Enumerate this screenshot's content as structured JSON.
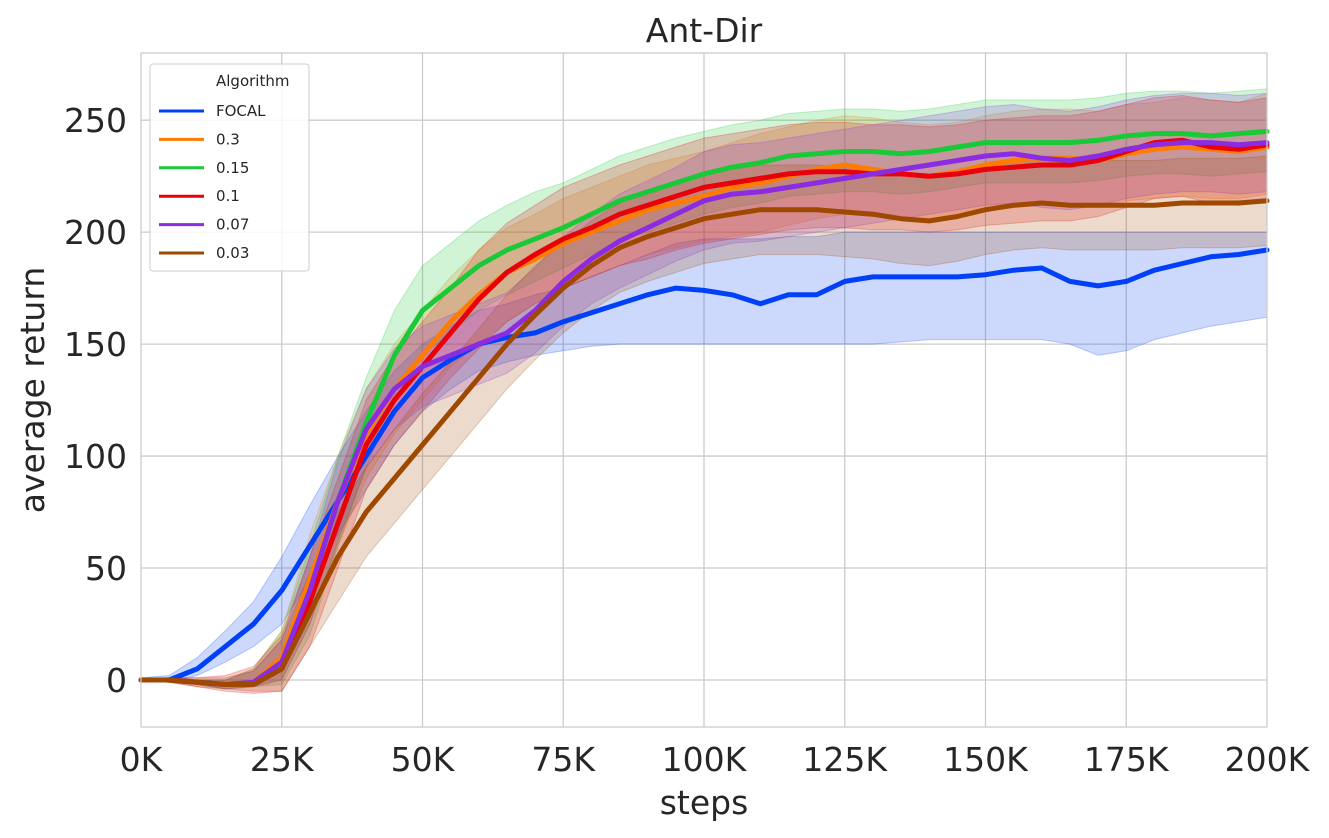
{
  "chart_data": {
    "type": "line",
    "title": "Ant-Dir",
    "xlabel": "steps",
    "ylabel": "average return",
    "xlim": [
      0,
      200000
    ],
    "ylim": [
      -21,
      280
    ],
    "x_ticks": [
      0,
      25000,
      50000,
      75000,
      100000,
      125000,
      150000,
      175000,
      200000
    ],
    "x_tick_labels": [
      "0K",
      "25K",
      "50K",
      "75K",
      "100K",
      "125K",
      "150K",
      "175K",
      "200K"
    ],
    "y_ticks": [
      0,
      50,
      100,
      150,
      200,
      250
    ],
    "y_tick_labels": [
      "0",
      "50",
      "100",
      "150",
      "200",
      "250"
    ],
    "grid": true,
    "legend": {
      "title": "Algorithm",
      "placement": "top-left"
    },
    "x": [
      0,
      5000,
      10000,
      15000,
      20000,
      25000,
      30000,
      35000,
      40000,
      45000,
      50000,
      55000,
      60000,
      65000,
      70000,
      75000,
      80000,
      85000,
      90000,
      95000,
      100000,
      105000,
      110000,
      115000,
      120000,
      125000,
      130000,
      135000,
      140000,
      145000,
      150000,
      155000,
      160000,
      165000,
      170000,
      175000,
      180000,
      185000,
      190000,
      195000,
      200000
    ],
    "series": [
      {
        "name": "FOCAL",
        "color": "#0041f7",
        "values": [
          0,
          0,
          5,
          15,
          25,
          40,
          60,
          80,
          100,
          120,
          135,
          143,
          150,
          153,
          155,
          160,
          164,
          168,
          172,
          175,
          174,
          172,
          168,
          172,
          172,
          178,
          180,
          180,
          180,
          180,
          181,
          183,
          184,
          178,
          176,
          178,
          183,
          186,
          189,
          190,
          192
        ],
        "lower": [
          0,
          -1,
          2,
          8,
          15,
          25,
          45,
          65,
          85,
          105,
          120,
          130,
          138,
          142,
          145,
          147,
          149,
          150,
          150,
          150,
          150,
          150,
          150,
          150,
          150,
          150,
          150,
          151,
          152,
          152,
          152,
          152,
          152,
          150,
          145,
          147,
          152,
          155,
          158,
          160,
          162
        ],
        "upper": [
          1,
          2,
          10,
          22,
          35,
          55,
          78,
          100,
          120,
          138,
          150,
          158,
          165,
          168,
          172,
          175,
          180,
          185,
          190,
          195,
          197,
          197,
          197,
          198,
          198,
          200,
          200,
          200,
          200,
          200,
          200,
          200,
          200,
          200,
          200,
          200,
          200,
          200,
          200,
          200,
          200
        ]
      },
      {
        "name": "0.3",
        "color": "#ff7c00",
        "values": [
          0,
          0,
          -1,
          -2,
          -1,
          10,
          45,
          80,
          110,
          130,
          145,
          160,
          172,
          182,
          188,
          195,
          200,
          205,
          210,
          213,
          216,
          220,
          222,
          225,
          228,
          230,
          228,
          226,
          225,
          227,
          230,
          232,
          233,
          233,
          232,
          235,
          237,
          238,
          237,
          236,
          238
        ],
        "lower": [
          0,
          -1,
          -2,
          -4,
          -3,
          0,
          25,
          60,
          90,
          110,
          125,
          140,
          150,
          160,
          168,
          175,
          180,
          185,
          190,
          193,
          196,
          198,
          200,
          203,
          206,
          208,
          207,
          206,
          205,
          207,
          210,
          211,
          212,
          212,
          212,
          214,
          215,
          216,
          215,
          215,
          217
        ],
        "upper": [
          0,
          1,
          0,
          0,
          5,
          22,
          65,
          100,
          130,
          150,
          165,
          180,
          192,
          202,
          208,
          215,
          220,
          225,
          230,
          233,
          236,
          240,
          244,
          247,
          250,
          252,
          251,
          249,
          248,
          249,
          252,
          254,
          255,
          255,
          254,
          257,
          258,
          260,
          259,
          258,
          262
        ]
      },
      {
        "name": "0.15",
        "color": "#1ac938",
        "values": [
          0,
          0,
          -1,
          -2,
          -1,
          8,
          40,
          80,
          115,
          145,
          165,
          175,
          185,
          192,
          197,
          202,
          208,
          214,
          218,
          222,
          226,
          229,
          231,
          234,
          235,
          236,
          236,
          235,
          236,
          238,
          240,
          240,
          240,
          240,
          241,
          243,
          244,
          244,
          243,
          244,
          245
        ],
        "lower": [
          0,
          -1,
          -2,
          -4,
          -3,
          -2,
          20,
          60,
          95,
          125,
          145,
          155,
          165,
          172,
          178,
          184,
          190,
          196,
          200,
          204,
          208,
          211,
          213,
          216,
          217,
          218,
          218,
          217,
          218,
          220,
          222,
          222,
          222,
          222,
          223,
          225,
          226,
          226,
          225,
          226,
          227
        ],
        "upper": [
          0,
          1,
          0,
          0,
          5,
          22,
          60,
          100,
          135,
          165,
          185,
          195,
          205,
          212,
          218,
          222,
          228,
          234,
          238,
          242,
          245,
          248,
          250,
          253,
          254,
          255,
          255,
          254,
          255,
          257,
          259,
          259,
          259,
          259,
          260,
          262,
          263,
          263,
          262,
          263,
          264
        ]
      },
      {
        "name": "0.1",
        "color": "#e8000b",
        "values": [
          0,
          0,
          -1,
          -2,
          -2,
          5,
          35,
          70,
          105,
          125,
          140,
          155,
          170,
          182,
          190,
          197,
          202,
          208,
          212,
          216,
          220,
          222,
          224,
          226,
          227,
          227,
          226,
          226,
          225,
          226,
          228,
          229,
          230,
          230,
          232,
          236,
          240,
          241,
          238,
          237,
          239
        ],
        "lower": [
          0,
          -1,
          -3,
          -5,
          -6,
          -5,
          15,
          50,
          85,
          105,
          120,
          135,
          148,
          160,
          168,
          175,
          180,
          185,
          188,
          192,
          195,
          197,
          199,
          201,
          202,
          202,
          201,
          201,
          200,
          201,
          203,
          204,
          205,
          205,
          207,
          211,
          215,
          216,
          213,
          212,
          214
        ],
        "upper": [
          0,
          1,
          1,
          2,
          6,
          20,
          55,
          90,
          125,
          145,
          160,
          175,
          192,
          204,
          212,
          220,
          225,
          230,
          234,
          238,
          242,
          244,
          246,
          248,
          249,
          249,
          248,
          248,
          247,
          248,
          250,
          251,
          252,
          252,
          254,
          257,
          260,
          261,
          259,
          258,
          260
        ]
      },
      {
        "name": "0.07",
        "color": "#8b2be2",
        "values": [
          0,
          0,
          -1,
          -2,
          -1,
          8,
          40,
          80,
          112,
          130,
          140,
          145,
          150,
          155,
          165,
          178,
          188,
          196,
          202,
          208,
          214,
          217,
          218,
          220,
          222,
          224,
          226,
          228,
          230,
          232,
          234,
          235,
          233,
          232,
          234,
          237,
          239,
          240,
          240,
          239,
          240
        ],
        "lower": [
          0,
          -1,
          -2,
          -4,
          -3,
          0,
          25,
          62,
          95,
          112,
          122,
          127,
          132,
          137,
          146,
          158,
          168,
          175,
          181,
          187,
          192,
          195,
          196,
          198,
          200,
          202,
          204,
          206,
          208,
          210,
          212,
          213,
          211,
          210,
          212,
          215,
          217,
          218,
          218,
          217,
          218
        ],
        "upper": [
          0,
          1,
          0,
          0,
          4,
          18,
          55,
          98,
          130,
          148,
          158,
          163,
          168,
          173,
          184,
          198,
          208,
          217,
          223,
          229,
          236,
          239,
          240,
          242,
          244,
          246,
          248,
          250,
          252,
          254,
          256,
          257,
          255,
          254,
          256,
          259,
          261,
          262,
          262,
          261,
          262
        ]
      },
      {
        "name": "0.03",
        "color": "#9f4800",
        "values": [
          0,
          0,
          -1,
          -2,
          -2,
          5,
          30,
          55,
          75,
          90,
          105,
          120,
          135,
          150,
          163,
          175,
          185,
          193,
          198,
          202,
          206,
          208,
          210,
          210,
          210,
          209,
          208,
          206,
          205,
          207,
          210,
          212,
          213,
          212,
          212,
          212,
          212,
          213,
          213,
          213,
          214
        ],
        "lower": [
          0,
          -1,
          -3,
          -4,
          -5,
          -5,
          15,
          35,
          55,
          70,
          85,
          100,
          115,
          130,
          143,
          155,
          165,
          173,
          178,
          182,
          186,
          188,
          190,
          190,
          190,
          189,
          188,
          186,
          185,
          187,
          190,
          192,
          193,
          192,
          192,
          192,
          192,
          193,
          193,
          193,
          194
        ],
        "upper": [
          0,
          1,
          1,
          1,
          4,
          18,
          48,
          75,
          95,
          112,
          128,
          142,
          157,
          172,
          185,
          195,
          205,
          213,
          218,
          222,
          226,
          228,
          230,
          230,
          230,
          229,
          228,
          226,
          225,
          227,
          230,
          232,
          233,
          232,
          232,
          232,
          232,
          233,
          233,
          233,
          234
        ]
      }
    ]
  }
}
